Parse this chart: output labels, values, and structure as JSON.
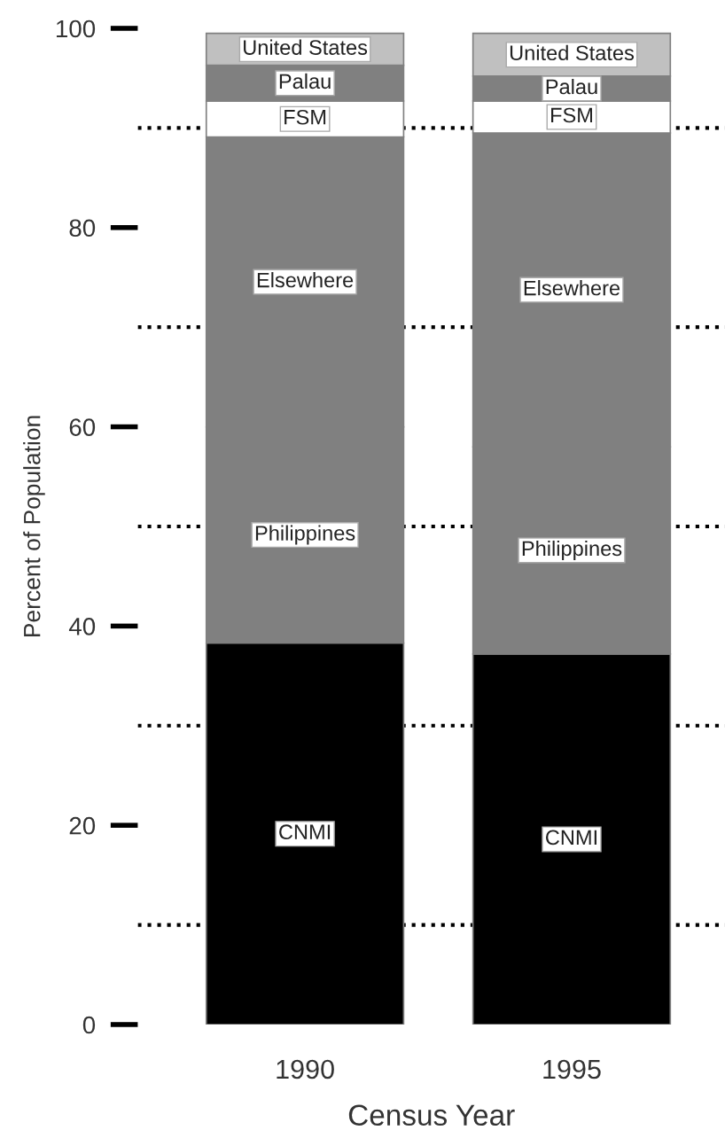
{
  "chart_data": {
    "type": "bar",
    "stacked": true,
    "xlabel": "Census Year",
    "ylabel": "Percent of Population",
    "categories": [
      "1990",
      "1995"
    ],
    "series": [
      {
        "name": "CNMI",
        "color": "#000000",
        "values": [
          38.3,
          37.2
        ]
      },
      {
        "name": "Philippines",
        "color": "#808080",
        "values": [
          21.7,
          20.8
        ]
      },
      {
        "name": "Elsewhere",
        "color": "#808080",
        "values": [
          29.1,
          31.5
        ]
      },
      {
        "name": "FSM",
        "color": "#ffffff",
        "values": [
          3.6,
          3.2
        ]
      },
      {
        "name": "Palau",
        "color": "#808080",
        "values": [
          3.6,
          2.5
        ]
      },
      {
        "name": "United States",
        "color": "#c0c0c0",
        "values": [
          3.2,
          4.3
        ]
      }
    ],
    "ylim": [
      0,
      100
    ],
    "yticks": [
      0,
      20,
      40,
      60,
      80,
      100
    ],
    "ref_lines": [
      {
        "axis": "y",
        "value": 10,
        "color": "#000000",
        "line_style": "dotted"
      },
      {
        "axis": "y",
        "value": 30,
        "color": "#000000",
        "line_style": "dotted"
      },
      {
        "axis": "y",
        "value": 50,
        "color": "#000000",
        "line_style": "dotted"
      },
      {
        "axis": "y",
        "value": 70,
        "color": "#000000",
        "line_style": "dotted"
      },
      {
        "axis": "y",
        "value": 90,
        "color": "#000000",
        "line_style": "dotted"
      }
    ],
    "grid": false,
    "legend": false
  }
}
